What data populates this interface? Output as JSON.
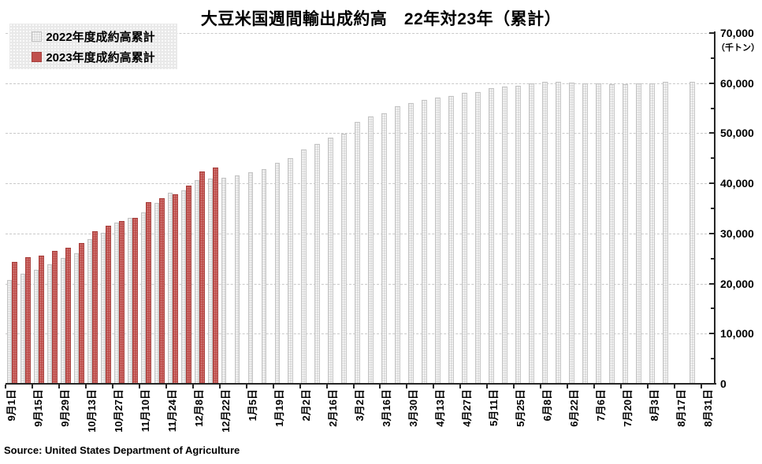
{
  "title": "大豆米国週間輸出成約高　22年対23年（累計）",
  "source": "Source: United States Department of Agriculture",
  "legend": {
    "items": [
      {
        "label": "2022年度成約高累計",
        "color": "#dadada"
      },
      {
        "label": "2023年度成約高累計",
        "color": "#c0504d"
      }
    ]
  },
  "y_axis": {
    "unit": "（千トン）",
    "tick_labels": [
      "70,000",
      "60,000",
      "50,000",
      "40,000",
      "30,000",
      "20,000",
      "10,000",
      "0"
    ],
    "major_step": 10000,
    "minor_step": 5000
  },
  "chart_data": {
    "type": "bar",
    "title": "大豆米国週間輸出成約高　22年対23年（累計）",
    "xlabel": "",
    "ylabel": "（千トン）",
    "ylim": [
      0,
      70000
    ],
    "grid": "horizontal-dashed",
    "legend_position": "top-left",
    "x_label_every": 2,
    "categories": [
      "9月1日",
      "9月8日",
      "9月15日",
      "9月22日",
      "9月29日",
      "10月6日",
      "10月13日",
      "10月20日",
      "10月27日",
      "11月3日",
      "11月10日",
      "11月17日",
      "11月24日",
      "12月1日",
      "12月8日",
      "12月15日",
      "12月22日",
      "12月29日",
      "1月5日",
      "1月12日",
      "1月19日",
      "1月26日",
      "2月2日",
      "2月9日",
      "2月16日",
      "2月23日",
      "3月2日",
      "3月9日",
      "3月16日",
      "3月23日",
      "3月30日",
      "4月6日",
      "4月13日",
      "4月20日",
      "4月27日",
      "5月4日",
      "5月11日",
      "5月18日",
      "5月25日",
      "6月1日",
      "6月8日",
      "6月15日",
      "6月22日",
      "6月29日",
      "7月6日",
      "7月13日",
      "7月20日",
      "7月27日",
      "8月3日",
      "8月10日",
      "8月17日",
      "8月24日",
      "8月31日"
    ],
    "series": [
      {
        "name": "2022年度成約高累計",
        "color": "#dadada",
        "values": [
          20700,
          22000,
          22800,
          23900,
          25100,
          26100,
          28900,
          30100,
          32100,
          33100,
          34200,
          36100,
          38100,
          38600,
          40700,
          40900,
          41100,
          41600,
          42300,
          42900,
          44100,
          45100,
          46700,
          47900,
          49100,
          49900,
          52300,
          53300,
          54000,
          55400,
          56000,
          56600,
          57100,
          57500,
          58100,
          58300,
          59000,
          59300,
          59500,
          60000,
          60300,
          60300,
          60100,
          59900,
          59900,
          59800,
          59800,
          60000,
          59900,
          60300,
          null,
          60300,
          null
        ]
      },
      {
        "name": "2023年度成約高累計",
        "color": "#c0504d",
        "values": [
          24400,
          25200,
          25600,
          26500,
          27200,
          28100,
          30400,
          31500,
          32500,
          33100,
          36200,
          37100,
          37800,
          39500,
          42400,
          43200,
          null,
          null,
          null,
          null,
          null,
          null,
          null,
          null,
          null,
          null,
          null,
          null,
          null,
          null,
          null,
          null,
          null,
          null,
          null,
          null,
          null,
          null,
          null,
          null,
          null,
          null,
          null,
          null,
          null,
          null,
          null,
          null,
          null,
          null,
          null,
          null,
          null
        ]
      }
    ]
  }
}
